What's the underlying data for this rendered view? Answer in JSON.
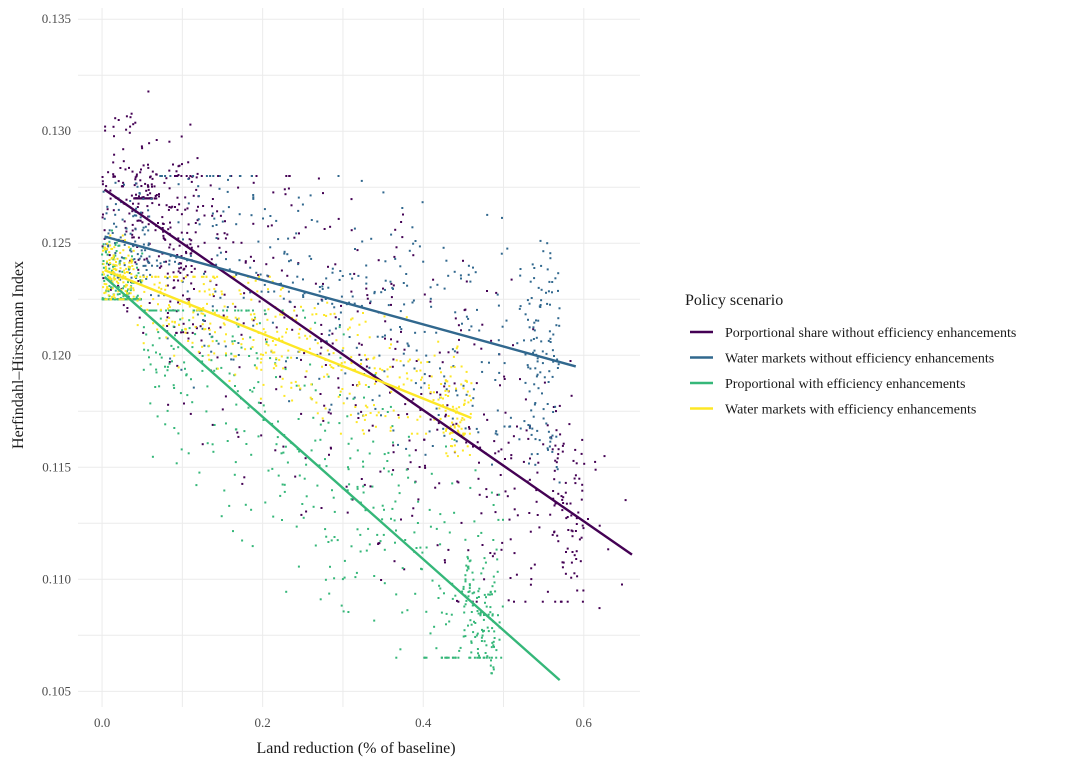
{
  "chart_data": {
    "type": "scatter",
    "xlabel": "Land reduction (% of baseline)",
    "ylabel": "Herfindahl–Hirschman Index",
    "xlim": [
      -0.03,
      0.67
    ],
    "ylim": [
      0.1043,
      0.1355
    ],
    "x_ticks": [
      0.0,
      0.2,
      0.4,
      0.6
    ],
    "x_tick_labels": [
      "0.0",
      "0.2",
      "0.4",
      "0.6"
    ],
    "y_ticks": [
      0.105,
      0.11,
      0.115,
      0.12,
      0.125,
      0.13,
      0.135
    ],
    "y_tick_labels": [
      "0.105",
      "0.110",
      "0.115",
      "0.120",
      "0.125",
      "0.130",
      "0.135"
    ],
    "grid": true,
    "legend_position": "right",
    "legend_title": "Policy scenario",
    "series": [
      {
        "name": "Porportional share without efficiency enhancements",
        "color": "#440154",
        "trend": [
          [
            0.003,
            0.1274
          ],
          [
            0.66,
            0.1111
          ]
        ],
        "clusters": [
          {
            "n": 230,
            "x": [
              0.0,
              0.12
            ],
            "y": [
              0.121,
              0.133
            ]
          },
          {
            "n": 70,
            "x": [
              0.04,
              0.07
            ],
            "y": [
              0.127,
              0.13
            ]
          },
          {
            "n": 420,
            "x": [
              0.08,
              0.6
            ],
            "y": [
              0.109,
              0.128
            ]
          },
          {
            "n": 60,
            "x": [
              0.56,
              0.6
            ],
            "y": [
              0.1095,
              0.118
            ]
          },
          {
            "n": 10,
            "x": [
              0.6,
              0.66
            ],
            "y": [
              0.1065,
              0.1155
            ]
          }
        ]
      },
      {
        "name": "Water markets without efficiency enhancements",
        "color": "#31688e",
        "trend": [
          [
            0.003,
            0.1253
          ],
          [
            0.59,
            0.1195
          ]
        ],
        "clusters": [
          {
            "n": 100,
            "x": [
              0.0,
              0.06
            ],
            "y": [
              0.1225,
              0.1285
            ]
          },
          {
            "n": 380,
            "x": [
              0.06,
              0.56
            ],
            "y": [
              0.115,
              0.128
            ]
          },
          {
            "n": 90,
            "x": [
              0.53,
              0.57
            ],
            "y": [
              0.113,
              0.125
            ]
          }
        ]
      },
      {
        "name": "Proportional with efficiency enhancements",
        "color": "#35b779",
        "trend": [
          [
            0.003,
            0.1235
          ],
          [
            0.57,
            0.1055
          ]
        ],
        "clusters": [
          {
            "n": 150,
            "x": [
              0.0,
              0.05
            ],
            "y": [
              0.1225,
              0.128
            ]
          },
          {
            "n": 450,
            "x": [
              0.05,
              0.5
            ],
            "y": [
              0.1065,
              0.122
            ]
          },
          {
            "n": 90,
            "x": [
              0.45,
              0.49
            ],
            "y": [
              0.1055,
              0.111
            ]
          }
        ]
      },
      {
        "name": "Water markets with efficiency enhancements",
        "color": "#fde725",
        "trend": [
          [
            0.003,
            0.1238
          ],
          [
            0.46,
            0.1172
          ]
        ],
        "clusters": [
          {
            "n": 130,
            "x": [
              0.0,
              0.04
            ],
            "y": [
              0.1225,
              0.1265
            ]
          },
          {
            "n": 380,
            "x": [
              0.04,
              0.46
            ],
            "y": [
              0.1165,
              0.1235
            ]
          },
          {
            "n": 60,
            "x": [
              0.42,
              0.46
            ],
            "y": [
              0.1155,
              0.1205
            ]
          }
        ]
      }
    ]
  }
}
